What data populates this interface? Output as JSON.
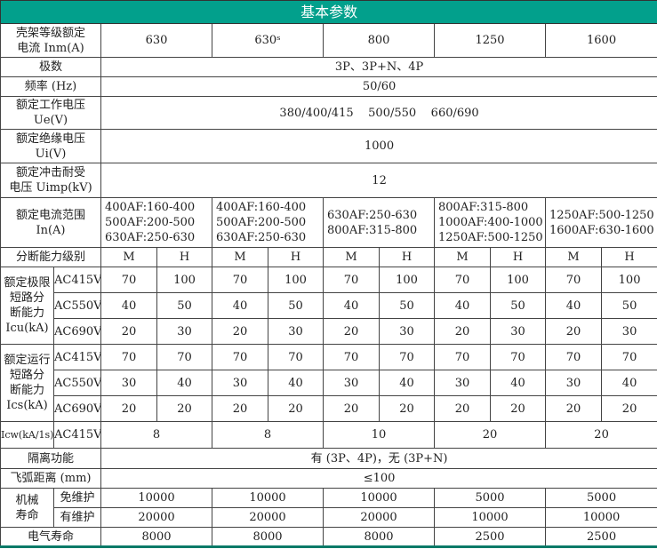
{
  "title": "基本参数",
  "colors": {
    "header_bg": "#02a08c",
    "header_text": "#ffffff"
  },
  "rows": {
    "frame": {
      "label": [
        "壳架等级额定",
        "电流 Inm(A)"
      ],
      "values": [
        "630",
        "630ˢ",
        "800",
        "1250",
        "1600"
      ]
    },
    "poles": {
      "label": "极数",
      "value": "3P、3P+N、4P"
    },
    "freq": {
      "label": "频率 (Hz)",
      "value": "50/60"
    },
    "ue": {
      "label": [
        "额定工作电压",
        "Ue(V)"
      ],
      "value": "380/400/415    500/550    660/690"
    },
    "ui": {
      "label": [
        "额定绝缘电压",
        "Ui(V)"
      ],
      "value": "1000"
    },
    "uimp": {
      "label": [
        "额定冲击耐受",
        "电压 Uimp(kV)"
      ],
      "value": "12"
    },
    "in": {
      "label": [
        "额定电流范围",
        "In(A)"
      ],
      "values": [
        [
          "400AF:160-400",
          "500AF:200-500",
          "630AF:250-630"
        ],
        [
          "400AF:160-400",
          "500AF:200-500",
          "630AF:250-630"
        ],
        [
          "630AF:250-630",
          "800AF:315-800"
        ],
        [
          "800AF:315-800",
          "1000AF:400-1000",
          "1250AF:500-1250"
        ],
        [
          "1250AF:500-1250",
          "1600AF:630-1600"
        ]
      ]
    },
    "level": {
      "label": "分断能力级别",
      "values": [
        "M",
        "H",
        "M",
        "H",
        "M",
        "H",
        "M",
        "H",
        "M",
        "H"
      ]
    },
    "icu": {
      "label": [
        "额定极限",
        "短路分",
        "断能力",
        "Icu(kA)"
      ],
      "sub": [
        {
          "v": "AC415V",
          "values": [
            "70",
            "100",
            "70",
            "100",
            "70",
            "100",
            "70",
            "100",
            "70",
            "100"
          ]
        },
        {
          "v": "AC550V",
          "values": [
            "40",
            "50",
            "40",
            "50",
            "40",
            "50",
            "40",
            "50",
            "40",
            "50"
          ]
        },
        {
          "v": "AC690V",
          "values": [
            "20",
            "30",
            "20",
            "30",
            "20",
            "30",
            "20",
            "30",
            "20",
            "30"
          ]
        }
      ]
    },
    "ics": {
      "label": [
        "额定运行",
        "短路分",
        "断能力",
        "Ics(kA)"
      ],
      "sub": [
        {
          "v": "AC415V",
          "values": [
            "70",
            "70",
            "70",
            "70",
            "70",
            "70",
            "70",
            "70",
            "70",
            "70"
          ]
        },
        {
          "v": "AC550V",
          "values": [
            "30",
            "40",
            "30",
            "40",
            "30",
            "40",
            "30",
            "40",
            "30",
            "40"
          ]
        },
        {
          "v": "AC690V",
          "values": [
            "20",
            "20",
            "20",
            "20",
            "20",
            "20",
            "20",
            "20",
            "20",
            "20"
          ]
        }
      ]
    },
    "icw": {
      "label": "Icw(kA/1s)",
      "v": "AC415V",
      "values": [
        "8",
        "8",
        "10",
        "20",
        "20"
      ]
    },
    "isolation": {
      "label": "隔离功能",
      "value": "有 (3P、4P)，无 (3P+N)"
    },
    "arc": {
      "label": "飞弧距离 (mm)",
      "value": "≤100"
    },
    "mech": {
      "label": [
        "机械",
        "寿命"
      ],
      "sub": [
        {
          "name": "免维护",
          "values": [
            "10000",
            "10000",
            "10000",
            "5000",
            "5000"
          ]
        },
        {
          "name": "有维护",
          "values": [
            "20000",
            "20000",
            "20000",
            "10000",
            "10000"
          ]
        }
      ]
    },
    "elec": {
      "label": "电气寿命",
      "values": [
        "8000",
        "8000",
        "8000",
        "2500",
        "2500"
      ]
    }
  }
}
